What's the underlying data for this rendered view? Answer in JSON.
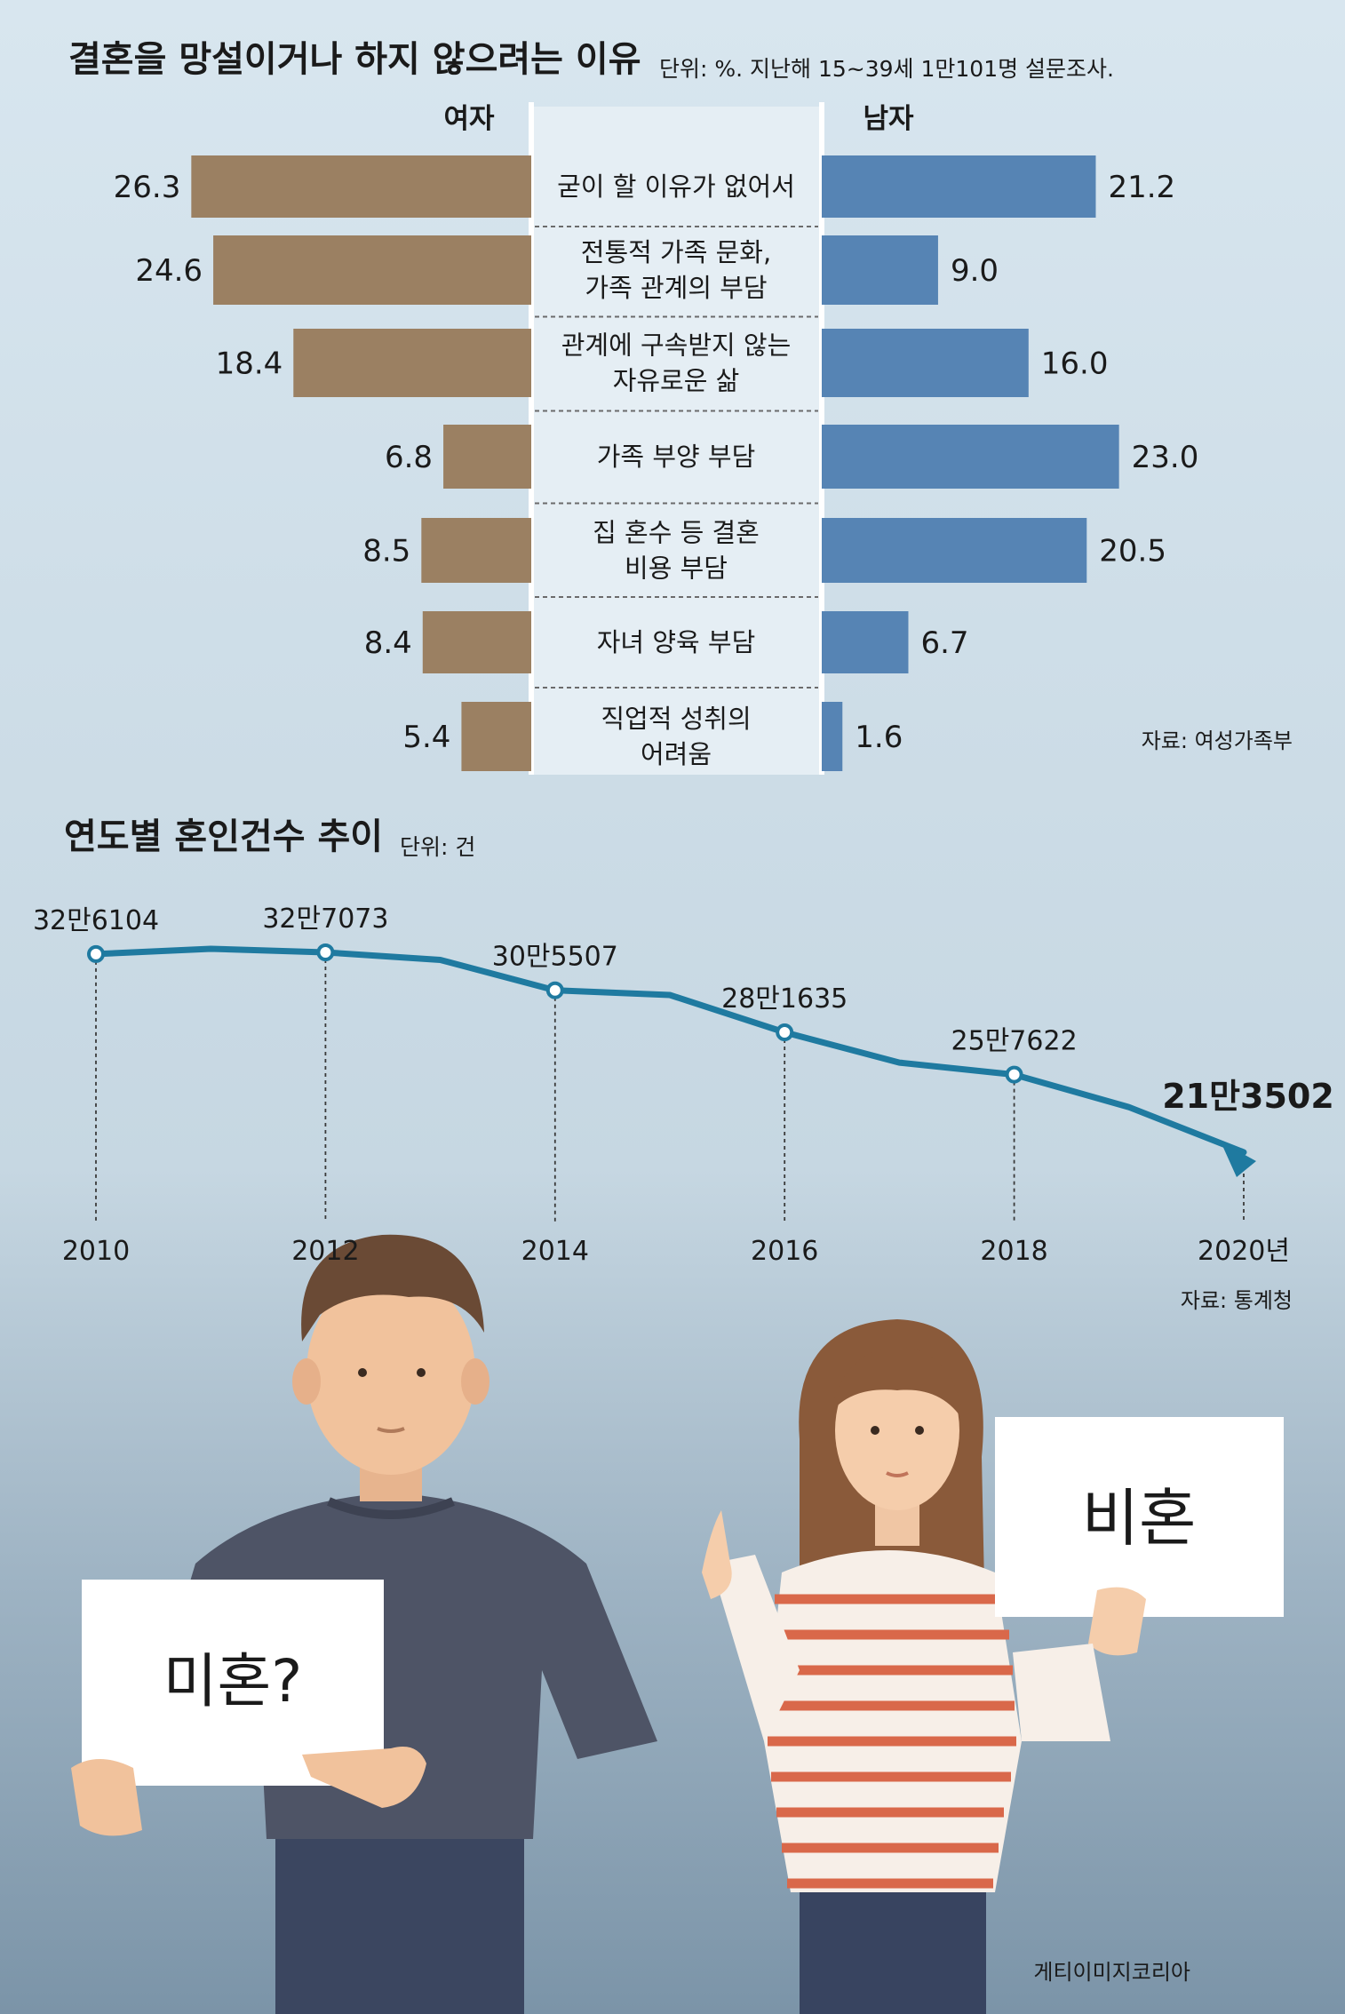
{
  "chart_data": [
    {
      "type": "bar",
      "title": "결혼을 망설이거나 하지 않으려는 이유",
      "note": "단위: %. 지난해 15~39세 1만101명 설문조사.",
      "source": "자료: 여성가족부",
      "categories": [
        "굳이 할 이유가 없어서",
        "전통적 가족 문화,\n가족 관계의 부담",
        "관계에 구속받지 않는\n자유로운 삶",
        "가족 부양 부담",
        "집 혼수 등 결혼\n비용 부담",
        "자녀 양육 부담",
        "직업적 성취의\n어려움"
      ],
      "series": [
        {
          "name": "여자",
          "values": [
            26.3,
            24.6,
            18.4,
            6.8,
            8.5,
            8.4,
            5.4
          ],
          "labels": [
            "26.3",
            "24.6",
            "18.4",
            "6.8",
            "8.5",
            "8.4",
            "5.4"
          ],
          "color": "#9b8062"
        },
        {
          "name": "남자",
          "values": [
            21.2,
            9.0,
            16.0,
            23.0,
            20.5,
            6.7,
            1.6
          ],
          "labels": [
            "21.2",
            "9.0",
            "16.0",
            "23.0",
            "20.5",
            "6.7",
            "1.6"
          ],
          "color": "#5684b4"
        }
      ]
    },
    {
      "type": "line",
      "title": "연도별 혼인건수 추이",
      "unit": "단위: 건",
      "source": "자료: 통계청",
      "x": [
        2010,
        2011,
        2012,
        2013,
        2014,
        2015,
        2016,
        2017,
        2018,
        2019,
        2020
      ],
      "y": [
        326104,
        329087,
        327073,
        322807,
        305507,
        302828,
        281635,
        264455,
        257622,
        239159,
        213502
      ],
      "x_tick_labels": [
        "2010",
        "2012",
        "2014",
        "2016",
        "2018",
        "2020년"
      ],
      "point_labels": [
        {
          "x": 2010,
          "text": "32만6104"
        },
        {
          "x": 2012,
          "text": "32만7073"
        },
        {
          "x": 2014,
          "text": "30만5507"
        },
        {
          "x": 2016,
          "text": "28만1635"
        },
        {
          "x": 2018,
          "text": "25만7622"
        },
        {
          "x": 2020,
          "text": "21만3502"
        }
      ],
      "line_color": "#1f7aa0"
    }
  ],
  "illustration": {
    "sign_left": "미혼?",
    "sign_right": "비혼",
    "credit": "게티이미지코리아"
  },
  "colors": {
    "bg_top": "#d6e5ee",
    "bg_bottom": "#7e97ab",
    "divider": "#ffffff"
  }
}
